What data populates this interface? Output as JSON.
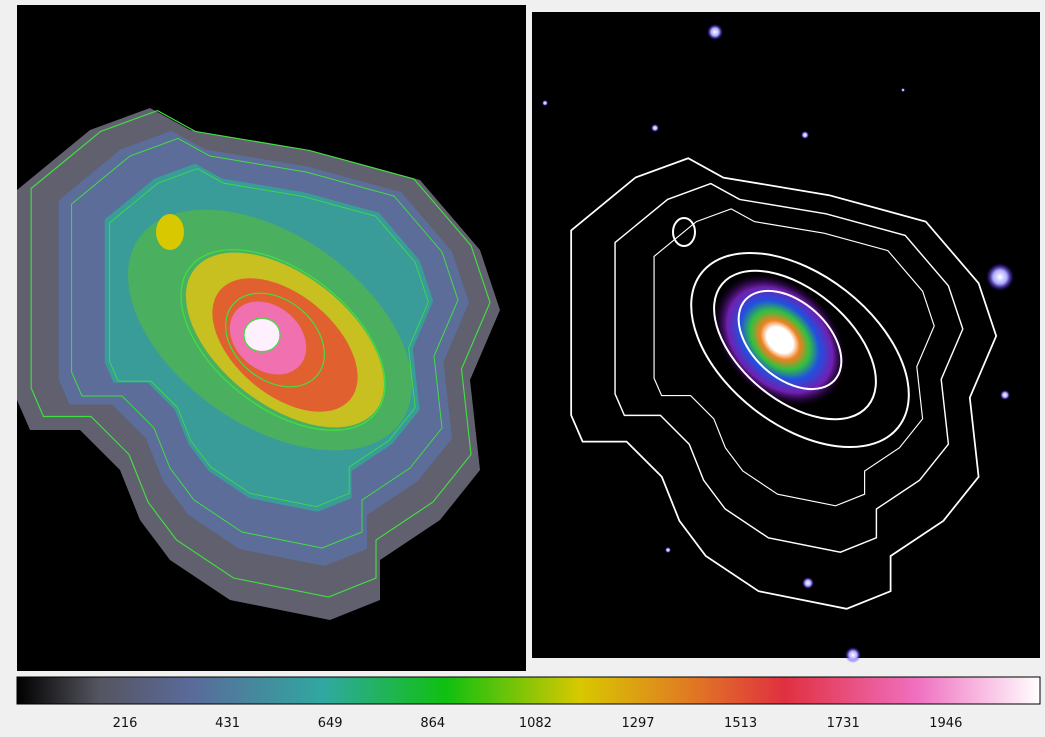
{
  "colorbar": {
    "ticks": [
      216,
      431,
      649,
      864,
      1082,
      1297,
      1513,
      1731,
      1946
    ]
  }
}
